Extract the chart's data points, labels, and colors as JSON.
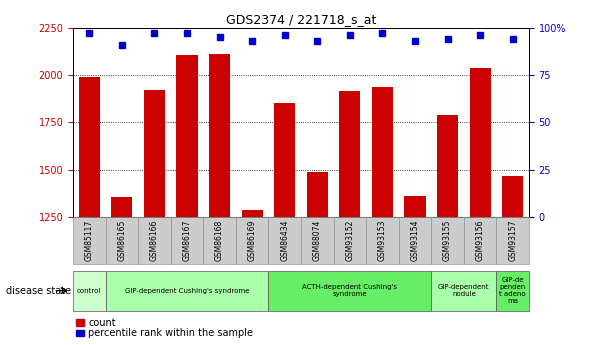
{
  "title": "GDS2374 / 221718_s_at",
  "samples": [
    "GSM85117",
    "GSM86165",
    "GSM86166",
    "GSM86167",
    "GSM86168",
    "GSM86169",
    "GSM86434",
    "GSM88074",
    "GSM93152",
    "GSM93153",
    "GSM93154",
    "GSM93155",
    "GSM93156",
    "GSM93157"
  ],
  "count_values": [
    1990,
    1355,
    1920,
    2105,
    2110,
    1290,
    1855,
    1490,
    1915,
    1935,
    1360,
    1790,
    2035,
    1470
  ],
  "percentile_values": [
    97,
    91,
    97,
    97,
    95,
    93,
    96,
    93,
    96,
    97,
    93,
    94,
    96,
    94
  ],
  "ylim_left": [
    1250,
    2250
  ],
  "ylim_right": [
    0,
    100
  ],
  "yticks_left": [
    1250,
    1500,
    1750,
    2000,
    2250
  ],
  "yticks_right": [
    0,
    25,
    50,
    75,
    100
  ],
  "bar_color": "#cc0000",
  "marker_color": "#0000cc",
  "disease_groups": [
    {
      "label": "control",
      "start": 0,
      "end": 1,
      "color": "#ccffcc"
    },
    {
      "label": "GIP-dependent Cushing's syndrome",
      "start": 1,
      "end": 6,
      "color": "#aaffaa"
    },
    {
      "label": "ACTH-dependent Cushing's\nsyndrome",
      "start": 6,
      "end": 11,
      "color": "#66ee66"
    },
    {
      "label": "GIP-dependent\nnodule",
      "start": 11,
      "end": 13,
      "color": "#aaffaa"
    },
    {
      "label": "GIP-de\npenden\nt adeno\nma",
      "start": 13,
      "end": 14,
      "color": "#66ee66"
    }
  ],
  "legend_label_count": "count",
  "legend_label_pct": "percentile rank within the sample",
  "disease_state_label": "disease state",
  "tick_color_left": "#cc0000",
  "tick_color_right": "#0000cc",
  "bg_tick": "#cccccc",
  "title_fontsize": 9,
  "tick_fontsize": 7,
  "label_fontsize": 6.5
}
